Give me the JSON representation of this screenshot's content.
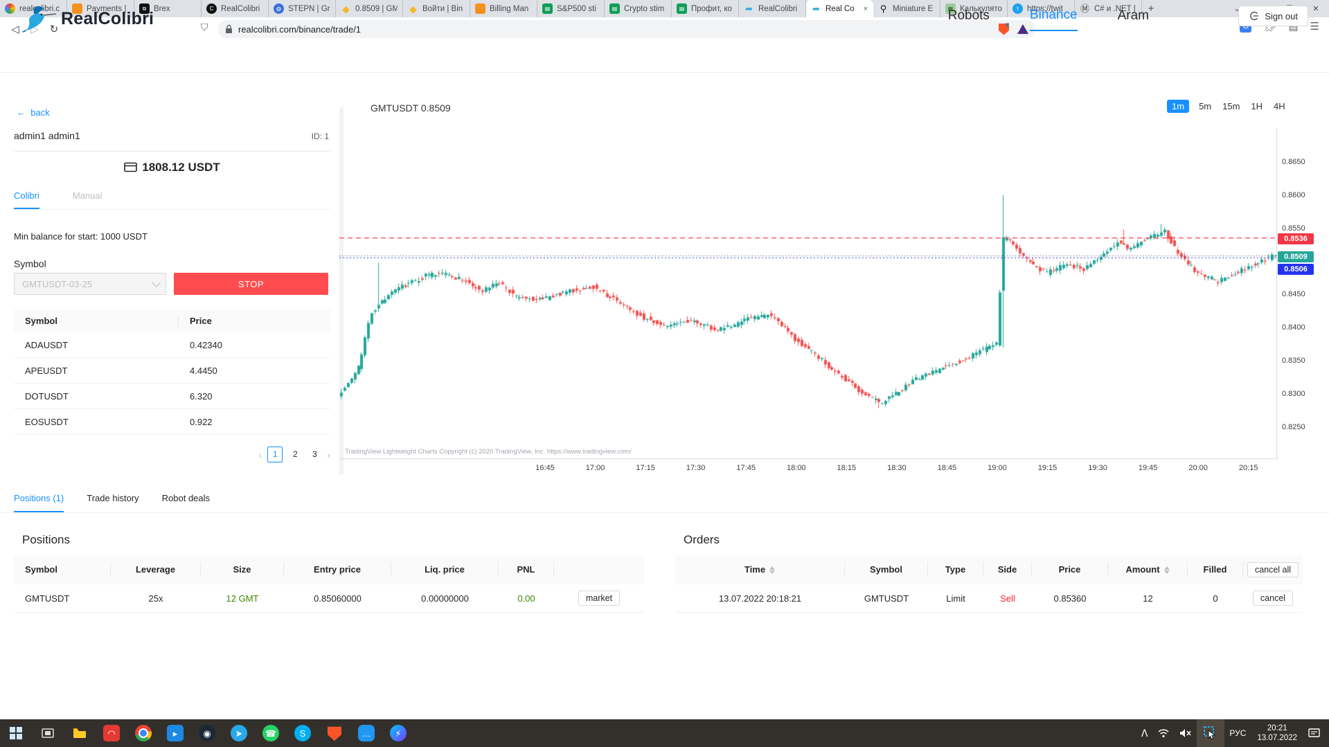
{
  "colors": {
    "accent": "#1890ff",
    "stop_red": "#ff4d4f",
    "up": "#26a69a",
    "down": "#ef5350",
    "tag_red": "#f23645",
    "tag_teal": "#26a69a",
    "tag_blue": "#2433ef",
    "sell_red": "#f5222d",
    "pnl_green": "#3f8600",
    "binance_yellow": "#f3ba2f"
  },
  "browser": {
    "tabs": [
      {
        "title": "realcolibri.c",
        "icon": "colibri-color"
      },
      {
        "title": "Payments |",
        "icon": "orange-cube"
      },
      {
        "title": "Brex",
        "icon": "brex-black"
      },
      {
        "title": "RealColibri",
        "icon": "dark-circle-c"
      },
      {
        "title": "STEPN | Gr",
        "icon": "stepn-blue"
      },
      {
        "title": "0.8509 | GM",
        "icon": "binance-diamond"
      },
      {
        "title": "Войти | Bin",
        "icon": "binance-diamond"
      },
      {
        "title": "Billing Man",
        "icon": "orange-cube"
      },
      {
        "title": "S&P500 sti",
        "icon": "sheets-green"
      },
      {
        "title": "Crypto stim",
        "icon": "sheets-green"
      },
      {
        "title": "Профит, ко",
        "icon": "sheets-green"
      },
      {
        "title": "RealColibri",
        "icon": "bird-blue"
      },
      {
        "title": "Real Co",
        "icon": "bird-blue",
        "active": true,
        "close": "×"
      },
      {
        "title": "Miniature E",
        "icon": "pin-black"
      },
      {
        "title": "Калькулято",
        "icon": "calc-green"
      },
      {
        "title": "https://twit",
        "icon": "twitter-blue"
      },
      {
        "title": "C# и .NET |",
        "icon": "mail-m"
      }
    ],
    "new_tab": "+",
    "window_controls": {
      "menu": "⌄",
      "min": "–",
      "max": "❐",
      "close": "✕"
    },
    "nav": {
      "back": "◁",
      "forward": "▷",
      "reload": "↻"
    },
    "url": "realcolibri.com/binance/trade/1",
    "shield_badge": "1"
  },
  "header": {
    "brand": "RealColibri",
    "nav": [
      {
        "label": "Robots",
        "active": false
      },
      {
        "label": "Binance",
        "active": true
      },
      {
        "label": "Aram",
        "active": false
      }
    ],
    "sign_out": "Sign out"
  },
  "sidebar": {
    "back": "back",
    "user": "admin1 admin1",
    "user_id": "ID: 1",
    "balance": "1808.12 USDT",
    "tabs": [
      {
        "label": "Colibri",
        "active": true
      },
      {
        "label": "Manual",
        "active": false
      }
    ],
    "min_balance": "Min balance for start: 1000 USDT",
    "symbol_label": "Symbol",
    "symbol_value": "GMTUSDT-03-25",
    "stop_label": "STOP",
    "price_table": {
      "headers": [
        "Symbol",
        "Price"
      ],
      "rows": [
        [
          "ADAUSDT",
          "0.42340"
        ],
        [
          "APEUSDT",
          "4.4450"
        ],
        [
          "DOTUSDT",
          "6.320"
        ],
        [
          "EOSUSDT",
          "0.922"
        ]
      ]
    },
    "pagination": {
      "prev": "‹",
      "next": "›",
      "pages": [
        "1",
        "2",
        "3"
      ],
      "active": "1"
    }
  },
  "chart_data": {
    "type": "candlestick",
    "title": "GMTUSDT 0.8509",
    "symbol": "GMTUSDT",
    "last_price": 0.8509,
    "timeframes": [
      "1m",
      "5m",
      "15m",
      "1H",
      "4H"
    ],
    "active_timeframe": "1m",
    "y_ticks": [
      0.865,
      0.86,
      0.855,
      0.845,
      0.84,
      0.835,
      0.83,
      0.825
    ],
    "price_max": 0.8698,
    "price_min": 0.8203,
    "time_labels": [
      "16:45",
      "17:00",
      "17:15",
      "17:30",
      "17:45",
      "18:00",
      "18:15",
      "18:30",
      "18:45",
      "19:00",
      "19:15",
      "19:30",
      "19:45",
      "20:00",
      "20:15"
    ],
    "lines": {
      "order_sell": 0.8536,
      "last": 0.8509,
      "entry": 0.8506
    },
    "tags": [
      {
        "value": "0.8536",
        "color": "#f23645",
        "y": 345
      },
      {
        "value": "0.8509",
        "color": "#26a69a",
        "y": 371
      },
      {
        "value": "0.8506",
        "color": "#2433ef",
        "y": 389
      }
    ],
    "anchors": [
      [
        0,
        0.83
      ],
      [
        3,
        0.8315
      ],
      [
        6,
        0.834
      ],
      [
        10,
        0.8425
      ],
      [
        14,
        0.8445
      ],
      [
        20,
        0.8465
      ],
      [
        26,
        0.8478
      ],
      [
        32,
        0.8482
      ],
      [
        38,
        0.847
      ],
      [
        43,
        0.8455
      ],
      [
        48,
        0.8468
      ],
      [
        53,
        0.8445
      ],
      [
        61,
        0.8442
      ],
      [
        68,
        0.8455
      ],
      [
        76,
        0.8462
      ],
      [
        83,
        0.844
      ],
      [
        91,
        0.8415
      ],
      [
        98,
        0.8402
      ],
      [
        106,
        0.8412
      ],
      [
        112,
        0.8396
      ],
      [
        118,
        0.8405
      ],
      [
        121,
        0.8412
      ],
      [
        128,
        0.842
      ],
      [
        133,
        0.8398
      ],
      [
        136,
        0.8382
      ],
      [
        142,
        0.836
      ],
      [
        147,
        0.8338
      ],
      [
        151,
        0.8322
      ],
      [
        157,
        0.8297
      ],
      [
        162,
        0.8286
      ],
      [
        166,
        0.83
      ],
      [
        172,
        0.8322
      ],
      [
        177,
        0.8332
      ],
      [
        181,
        0.8342
      ],
      [
        188,
        0.8356
      ],
      [
        194,
        0.8372
      ],
      [
        196,
        0.8376
      ],
      [
        198,
        0.8535
      ],
      [
        201,
        0.8528
      ],
      [
        205,
        0.8502
      ],
      [
        211,
        0.8482
      ],
      [
        217,
        0.8496
      ],
      [
        222,
        0.8488
      ],
      [
        226,
        0.8505
      ],
      [
        232,
        0.8528
      ],
      [
        236,
        0.8518
      ],
      [
        241,
        0.8536
      ],
      [
        246,
        0.8545
      ],
      [
        250,
        0.8512
      ],
      [
        256,
        0.8482
      ],
      [
        262,
        0.847
      ],
      [
        267,
        0.8482
      ],
      [
        271,
        0.8492
      ],
      [
        275,
        0.85
      ],
      [
        279,
        0.8509
      ]
    ],
    "spikes": [
      {
        "t": 11,
        "high": 0.8498
      },
      {
        "t": 160,
        "low": 0.8279
      },
      {
        "t": 197,
        "high": 0.86,
        "low": 0.837
      },
      {
        "t": 233,
        "high": 0.8548
      },
      {
        "t": 244,
        "high": 0.8556
      }
    ],
    "copyright": "TradingView Lightweight Charts Copyright (c) 2020 TradingView, Inc. https://www.tradingview.com/"
  },
  "bottom": {
    "tabs": [
      {
        "label": "Positions (1)",
        "active": true
      },
      {
        "label": "Trade history",
        "active": false
      },
      {
        "label": "Robot deals",
        "active": false
      }
    ],
    "positions": {
      "title": "Positions",
      "headers": [
        "Symbol",
        "Leverage",
        "Size",
        "Entry price",
        "Liq. price",
        "PNL"
      ],
      "row": {
        "symbol": "GMTUSDT",
        "leverage": "25x",
        "size": "12 GMT",
        "entry": "0.85060000",
        "liq": "0.00000000",
        "pnl": "0.00",
        "action": "market"
      }
    },
    "orders": {
      "title": "Orders",
      "headers": [
        "Time",
        "Symbol",
        "Type",
        "Side",
        "Price",
        "Amount",
        "Filled"
      ],
      "cancel_all": "cancel all",
      "row": {
        "time": "13.07.2022 20:18:21",
        "symbol": "GMTUSDT",
        "type": "Limit",
        "side": "Sell",
        "price": "0.85360",
        "amount": "12",
        "filled": "0",
        "action": "cancel"
      }
    }
  },
  "taskbar": {
    "apps": [
      "windows-start",
      "task-view",
      "file-explorer",
      "app-red",
      "chrome",
      "video-app",
      "steam",
      "telegram",
      "whatsapp",
      "skype",
      "brave",
      "chat-app",
      "messenger"
    ],
    "tray": {
      "lang": "РУС",
      "time": "20:21",
      "date": "13.07.2022"
    }
  }
}
